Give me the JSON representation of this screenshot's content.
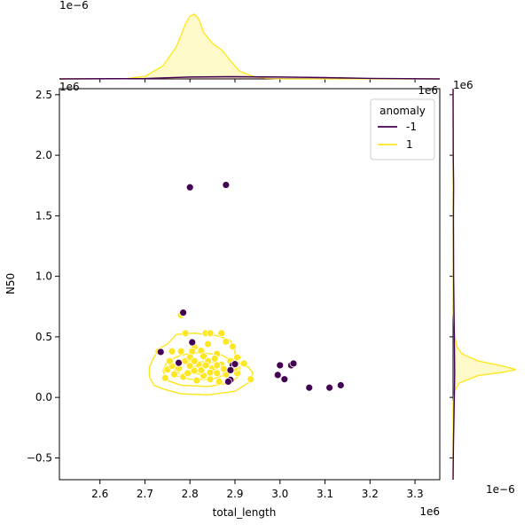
{
  "chart_data": {
    "type": "scatter",
    "subtype": "jointplot with kde contours and marginal kde",
    "xlabel": "total_length",
    "ylabel": "N50",
    "x_offset_label": "1e6",
    "y_offset_label": "1e6",
    "top_marginal_offset_label": "1e−6",
    "right_marginal_offset_label": "1e−6",
    "x_corner_label": "1e6",
    "y_corner_label": "1e6",
    "xlim": [
      2.51,
      3.355
    ],
    "ylim": [
      -0.68,
      2.55
    ],
    "x_ticks": [
      2.6,
      2.7,
      2.8,
      2.9,
      3.0,
      3.1,
      3.2,
      3.3
    ],
    "y_ticks": [
      -0.5,
      0.0,
      0.5,
      1.0,
      1.5,
      2.0,
      2.5
    ],
    "x_tick_labels": [
      "2.6",
      "2.7",
      "2.8",
      "2.9",
      "3.0",
      "3.1",
      "3.2",
      "3.3"
    ],
    "y_tick_labels": [
      "−0.5",
      "0.0",
      "0.5",
      "1.0",
      "1.5",
      "2.0",
      "2.5"
    ],
    "grid": false,
    "legend": {
      "title": "anomaly",
      "placement": "top-right",
      "entries": [
        {
          "label": "-1",
          "color": "#440154"
        },
        {
          "label": "1",
          "color": "#fde725"
        }
      ]
    },
    "series": [
      {
        "name": "-1",
        "color": "#440154",
        "points": [
          [
            2.8,
            1.735
          ],
          [
            2.88,
            1.755
          ],
          [
            2.785,
            0.7
          ],
          [
            2.805,
            0.455
          ],
          [
            2.735,
            0.375
          ],
          [
            2.775,
            0.285
          ],
          [
            2.895,
            0.265
          ],
          [
            2.9,
            0.275
          ],
          [
            2.89,
            0.225
          ],
          [
            2.89,
            0.145
          ],
          [
            2.885,
            0.13
          ],
          [
            2.995,
            0.185
          ],
          [
            3.0,
            0.265
          ],
          [
            3.01,
            0.15
          ],
          [
            3.025,
            0.265
          ],
          [
            3.03,
            0.28
          ],
          [
            3.065,
            0.08
          ],
          [
            3.11,
            0.08
          ],
          [
            3.135,
            0.1
          ]
        ]
      },
      {
        "name": "1",
        "color": "#fde725",
        "points": [
          [
            2.78,
            0.68
          ],
          [
            2.73,
            0.38
          ],
          [
            2.76,
            0.38
          ],
          [
            2.79,
            0.53
          ],
          [
            2.835,
            0.53
          ],
          [
            2.845,
            0.53
          ],
          [
            2.87,
            0.53
          ],
          [
            2.88,
            0.46
          ],
          [
            2.895,
            0.42
          ],
          [
            2.84,
            0.44
          ],
          [
            2.81,
            0.415
          ],
          [
            2.78,
            0.38
          ],
          [
            2.805,
            0.38
          ],
          [
            2.825,
            0.385
          ],
          [
            2.86,
            0.36
          ],
          [
            2.905,
            0.33
          ],
          [
            2.92,
            0.28
          ],
          [
            2.935,
            0.15
          ],
          [
            2.905,
            0.2
          ],
          [
            2.745,
            0.16
          ],
          [
            2.75,
            0.23
          ],
          [
            2.76,
            0.26
          ],
          [
            2.77,
            0.21
          ],
          [
            2.79,
            0.3
          ],
          [
            2.8,
            0.26
          ],
          [
            2.81,
            0.22
          ],
          [
            2.82,
            0.27
          ],
          [
            2.83,
            0.18
          ],
          [
            2.84,
            0.3
          ],
          [
            2.85,
            0.24
          ],
          [
            2.86,
            0.2
          ],
          [
            2.87,
            0.27
          ],
          [
            2.88,
            0.19
          ],
          [
            2.755,
            0.3
          ],
          [
            2.785,
            0.17
          ],
          [
            2.815,
            0.14
          ],
          [
            2.845,
            0.15
          ],
          [
            2.865,
            0.13
          ],
          [
            2.8,
            0.33
          ],
          [
            2.83,
            0.34
          ],
          [
            2.855,
            0.32
          ],
          [
            2.775,
            0.24
          ],
          [
            2.825,
            0.225
          ],
          [
            2.845,
            0.205
          ],
          [
            2.875,
            0.235
          ],
          [
            2.795,
            0.2
          ],
          [
            2.765,
            0.19
          ],
          [
            2.81,
            0.3
          ],
          [
            2.835,
            0.265
          ],
          [
            2.86,
            0.265
          ],
          [
            2.89,
            0.3
          ],
          [
            2.9,
            0.24
          ]
        ]
      }
    ],
    "marginal_x_kde": {
      "series": [
        {
          "name": "1",
          "color": "#fde725",
          "x": [
            2.51,
            2.66,
            2.7,
            2.74,
            2.77,
            2.79,
            2.8,
            2.81,
            2.82,
            2.83,
            2.85,
            2.87,
            2.89,
            2.91,
            2.94,
            2.97,
            3.0,
            3.355
          ],
          "density": [
            0.0,
            0.005,
            0.04,
            0.2,
            0.5,
            0.85,
            0.97,
            1.0,
            0.92,
            0.72,
            0.55,
            0.45,
            0.28,
            0.12,
            0.04,
            0.01,
            0.002,
            0.0
          ]
        },
        {
          "name": "-1",
          "color": "#440154",
          "x": [
            2.51,
            2.7,
            2.8,
            2.9,
            3.0,
            3.1,
            3.2,
            3.355
          ],
          "density": [
            0.0,
            0.005,
            0.03,
            0.035,
            0.03,
            0.02,
            0.008,
            0.0
          ]
        }
      ]
    },
    "marginal_y_kde": {
      "series": [
        {
          "name": "1",
          "color": "#fde725",
          "y": [
            -0.68,
            -0.05,
            0.05,
            0.12,
            0.18,
            0.21,
            0.23,
            0.26,
            0.3,
            0.36,
            0.42,
            0.5,
            0.6,
            0.7,
            2.55
          ],
          "density": [
            0.0,
            0.0,
            0.02,
            0.1,
            0.4,
            0.82,
            1.0,
            0.78,
            0.4,
            0.14,
            0.06,
            0.03,
            0.012,
            0.004,
            0.0
          ]
        },
        {
          "name": "-1",
          "color": "#440154",
          "y": [
            -0.68,
            -0.4,
            0.0,
            0.2,
            0.5,
            1.0,
            1.5,
            1.75,
            2.0,
            2.55
          ],
          "density": [
            0.0,
            0.005,
            0.02,
            0.025,
            0.02,
            0.008,
            0.006,
            0.008,
            0.003,
            0.0
          ]
        }
      ]
    },
    "kde_contours": {
      "series": "1",
      "color": "#fde725",
      "levels": [
        [
          [
            2.72,
            0.1
          ],
          [
            2.74,
            0.07
          ],
          [
            2.78,
            0.03
          ],
          [
            2.84,
            0.02
          ],
          [
            2.9,
            0.05
          ],
          [
            2.93,
            0.12
          ],
          [
            2.94,
            0.2
          ],
          [
            2.93,
            0.25
          ],
          [
            2.91,
            0.28
          ],
          [
            2.9,
            0.33
          ],
          [
            2.9,
            0.4
          ],
          [
            2.89,
            0.47
          ],
          [
            2.86,
            0.51
          ],
          [
            2.81,
            0.53
          ],
          [
            2.77,
            0.52
          ],
          [
            2.76,
            0.48
          ],
          [
            2.75,
            0.44
          ],
          [
            2.73,
            0.4
          ],
          [
            2.72,
            0.33
          ],
          [
            2.71,
            0.25
          ],
          [
            2.71,
            0.17
          ]
        ],
        [
          [
            2.75,
            0.14
          ],
          [
            2.78,
            0.1
          ],
          [
            2.84,
            0.09
          ],
          [
            2.89,
            0.12
          ],
          [
            2.91,
            0.18
          ],
          [
            2.91,
            0.25
          ],
          [
            2.89,
            0.31
          ],
          [
            2.87,
            0.35
          ],
          [
            2.82,
            0.37
          ],
          [
            2.78,
            0.35
          ],
          [
            2.75,
            0.3
          ],
          [
            2.74,
            0.22
          ]
        ],
        [
          [
            2.77,
            0.18
          ],
          [
            2.8,
            0.15
          ],
          [
            2.85,
            0.15
          ],
          [
            2.88,
            0.19
          ],
          [
            2.88,
            0.25
          ],
          [
            2.85,
            0.29
          ],
          [
            2.8,
            0.3
          ],
          [
            2.77,
            0.26
          ]
        ],
        [
          [
            2.8,
            0.2
          ],
          [
            2.83,
            0.19
          ],
          [
            2.86,
            0.21
          ],
          [
            2.86,
            0.25
          ],
          [
            2.83,
            0.27
          ],
          [
            2.8,
            0.25
          ]
        ]
      ]
    }
  }
}
